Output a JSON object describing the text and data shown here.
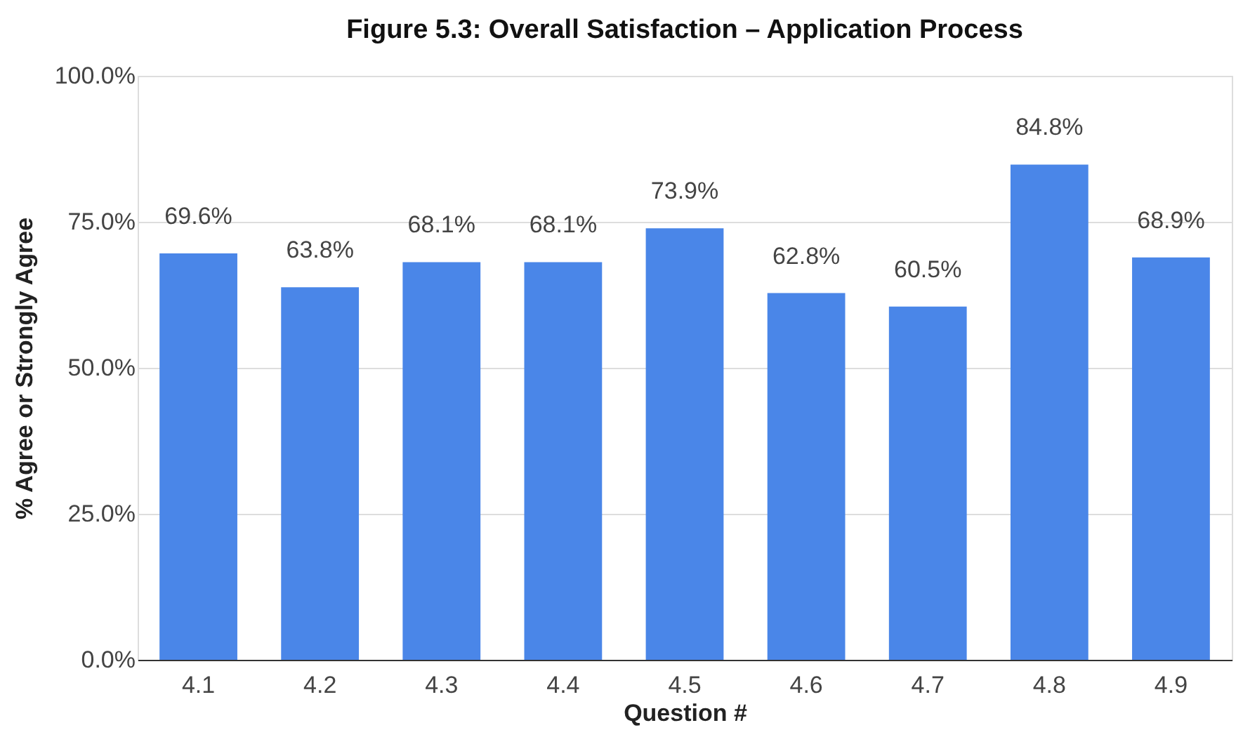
{
  "chart_data": {
    "type": "bar",
    "title": "Figure 5.3: Overall Satisfaction –  Application Process",
    "xlabel": "Question #",
    "ylabel": "% Agree or Strongly Agree",
    "categories": [
      "4.1",
      "4.2",
      "4.3",
      "4.4",
      "4.5",
      "4.6",
      "4.7",
      "4.8",
      "4.9"
    ],
    "values": [
      69.6,
      63.8,
      68.1,
      68.1,
      73.9,
      62.8,
      60.5,
      84.8,
      68.9
    ],
    "value_labels": [
      "69.6%",
      "63.8%",
      "68.1%",
      "68.1%",
      "73.9%",
      "62.8%",
      "60.5%",
      "84.8%",
      "68.9%"
    ],
    "color": "#4a86e8",
    "ylim": [
      0,
      100
    ],
    "yticks": [
      {
        "value": 0,
        "label": "0.0%"
      },
      {
        "value": 25,
        "label": "25.0%"
      },
      {
        "value": 50,
        "label": "50.0%"
      },
      {
        "value": 75,
        "label": "75.0%"
      },
      {
        "value": 100,
        "label": "100.0%"
      }
    ],
    "grid": "y"
  }
}
